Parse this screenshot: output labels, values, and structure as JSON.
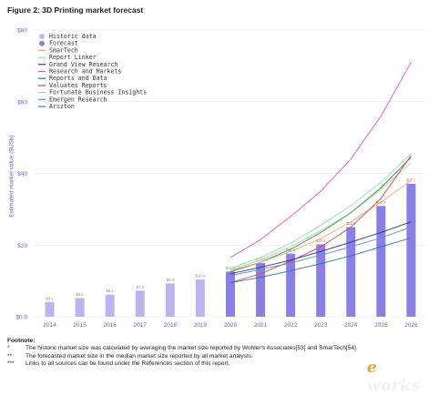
{
  "figure": {
    "title": "Figure 2: 3D Printing market forecast",
    "y_axis_title": "Estimated market value ($USb)"
  },
  "chart_data": {
    "type": "bar",
    "title": "Figure 2: 3D Printing market forecast",
    "xlabel": "",
    "ylabel": "Estimated market value ($USb)",
    "ylim": [
      0,
      80
    ],
    "yticks": [
      0,
      20,
      40,
      60,
      80
    ],
    "ytick_labels": [
      "$0.0",
      "$20",
      "$40",
      "$60",
      "$80"
    ],
    "grid": true,
    "legend_position": "top-left",
    "categories": [
      "2014",
      "2015",
      "2016",
      "2017",
      "2018",
      "2019",
      "2020",
      "2021",
      "2022",
      "2023",
      "2024",
      "2025",
      "2026"
    ],
    "bars": [
      {
        "year": "2014",
        "value": 4.1,
        "label": "$4.1",
        "kind": "historic"
      },
      {
        "year": "2015",
        "value": 5.2,
        "label": "$5.2",
        "kind": "historic"
      },
      {
        "year": "2016",
        "value": 6.2,
        "label": "$6.2",
        "kind": "historic"
      },
      {
        "year": "2017",
        "value": 7.3,
        "label": "$7.3",
        "kind": "historic"
      },
      {
        "year": "2018",
        "value": 9.3,
        "label": "$9.3",
        "kind": "historic"
      },
      {
        "year": "2019",
        "value": 10.4,
        "label": "$10.4",
        "kind": "historic"
      },
      {
        "year": "2020",
        "value": 12.6,
        "label": "$12.6",
        "kind": "forecast"
      },
      {
        "year": "2021",
        "value": 15.0,
        "label": "$15.0",
        "kind": "forecast"
      },
      {
        "year": "2022",
        "value": 17.6,
        "label": "$17.6",
        "kind": "forecast"
      },
      {
        "year": "2023",
        "value": 20.2,
        "label": "$20.2",
        "kind": "forecast"
      },
      {
        "year": "2024",
        "value": 25.0,
        "label": "$25.0",
        "kind": "forecast"
      },
      {
        "year": "2025",
        "value": 30.9,
        "label": "$30.9",
        "kind": "forecast"
      },
      {
        "year": "2026",
        "value": 37.1,
        "label": "$37.1",
        "kind": "forecast"
      }
    ],
    "legend": [
      {
        "name": "Historic data",
        "marker": "dot",
        "color": "#bdb4ef"
      },
      {
        "name": "Forecast",
        "marker": "dot",
        "color": "#8a7fe6"
      },
      {
        "name": "SmarTech",
        "marker": "line",
        "color": "#f0a95c"
      },
      {
        "name": "Report Linker",
        "marker": "line",
        "color": "#8fdcb6"
      },
      {
        "name": "Grand View Research",
        "marker": "line",
        "color": "#3a2f8c"
      },
      {
        "name": "Research and Markets",
        "marker": "line",
        "color": "#e84ec4"
      },
      {
        "name": "Reports and Data",
        "marker": "line",
        "color": "#2c6fb5"
      },
      {
        "name": "Valuates Reports",
        "marker": "line",
        "color": "#d9473f"
      },
      {
        "name": "Fortunate Business Insights",
        "marker": "line",
        "color": "#9fd8a6"
      },
      {
        "name": "Emergen Research",
        "marker": "line",
        "color": "#5b8fd6"
      },
      {
        "name": "Arizton",
        "marker": "line",
        "color": "#3f8f52"
      }
    ],
    "series": [
      {
        "name": "Research and Markets",
        "color": "#e84ec4",
        "x": [
          "2020",
          "2021",
          "2022",
          "2023",
          "2024",
          "2025",
          "2026"
        ],
        "values": [
          16.5,
          21.5,
          28,
          35,
          44,
          56,
          71
        ]
      },
      {
        "name": "Report Linker",
        "color": "#8fdcb6",
        "x": [
          "2020",
          "2021",
          "2022",
          "2023",
          "2024",
          "2025",
          "2026"
        ],
        "values": [
          13.5,
          16.5,
          20.5,
          25.5,
          31,
          37.5,
          45.5
        ]
      },
      {
        "name": "Fortunate Business Insights",
        "color": "#9fd8a6",
        "x": [
          "2020",
          "2021",
          "2022",
          "2023",
          "2024",
          "2025",
          "2026"
        ],
        "values": [
          13,
          15.8,
          19.5,
          24,
          29,
          35.5,
          43
        ]
      },
      {
        "name": "Arizton",
        "color": "#3f8f52",
        "x": [
          "2020",
          "2021",
          "2022",
          "2023",
          "2024",
          "2025",
          "2026"
        ],
        "values": [
          12.5,
          15.2,
          18.8,
          23.5,
          29,
          36,
          44.5
        ]
      },
      {
        "name": "SmarTech",
        "color": "#f0a95c",
        "x": [
          "2020",
          "2021",
          "2022",
          "2023",
          "2024",
          "2025",
          "2026"
        ],
        "values": [
          12.8,
          15.2,
          18.2,
          21.8,
          26.5,
          32,
          38
        ]
      },
      {
        "name": "Valuates Reports",
        "color": "#d9473f",
        "x": [
          "2020",
          "2021",
          "2022",
          "2023",
          "2024",
          "2025",
          "2026"
        ],
        "values": [
          9.5,
          12,
          15.5,
          19.5,
          25,
          33,
          45
        ]
      },
      {
        "name": "Grand View Research",
        "color": "#3a2f8c",
        "x": [
          "2020",
          "2021",
          "2022",
          "2023",
          "2024",
          "2025",
          "2026"
        ],
        "values": [
          12,
          13.8,
          15.8,
          18.2,
          20.8,
          23.5,
          26.5
        ]
      },
      {
        "name": "Emergen Research",
        "color": "#5b8fd6",
        "x": [
          "2020",
          "2021",
          "2022",
          "2023",
          "2024",
          "2025",
          "2026"
        ],
        "values": [
          11.5,
          13.2,
          15,
          17.2,
          19.5,
          22,
          25
        ]
      },
      {
        "name": "Reports and Data",
        "color": "#2c6fb5",
        "x": [
          "2020",
          "2021",
          "2022",
          "2023",
          "2024",
          "2025",
          "2026"
        ],
        "values": [
          9.5,
          11,
          12.8,
          14.8,
          17,
          19.5,
          22
        ]
      }
    ],
    "colors": {
      "historic": "#bdb4ef",
      "forecast": "#8a7fe6",
      "axis_text": "#6d5fd0",
      "grid": "#e6e6e6"
    }
  },
  "footnotes": {
    "heading": "Footnote:",
    "items": [
      {
        "mark": "*",
        "text": "The historic market size was calculated by averaging the market size reported by Wohler's Associates[53] and SmarTech[54]."
      },
      {
        "mark": "**",
        "text": "The forecasted market size in the median market size reported by all market analysts."
      },
      {
        "mark": "***",
        "text": "Links to all sources can be found under the References section of this report."
      }
    ]
  },
  "logo": {
    "prefix": "e",
    "text": "-works"
  }
}
